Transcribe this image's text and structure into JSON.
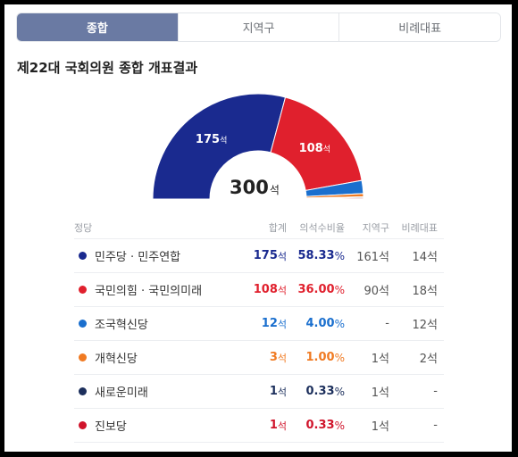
{
  "tabs": [
    {
      "label": "종합",
      "active": true
    },
    {
      "label": "지역구",
      "active": false
    },
    {
      "label": "비례대표",
      "active": false
    }
  ],
  "title": "제22대 국회의원 종합 개표결과",
  "summary": {
    "total": "300",
    "total_unit": "석"
  },
  "headers": {
    "party": "정당",
    "seats": "합계",
    "ratio": "의석수비율",
    "district": "지역구",
    "proportional": "비례대표"
  },
  "parties": [
    {
      "name": "민주당 · 민주연합",
      "seats": "175",
      "seat_unit": "석",
      "ratio": "58.33",
      "ratio_unit": "%",
      "district": "161석",
      "proportional": "14석",
      "color": "#1a2a8f"
    },
    {
      "name": "국민의힘 · 국민의미래",
      "seats": "108",
      "seat_unit": "석",
      "ratio": "36.00",
      "ratio_unit": "%",
      "district": "90석",
      "proportional": "18석",
      "color": "#e0202d"
    },
    {
      "name": "조국혁신당",
      "seats": "12",
      "seat_unit": "석",
      "ratio": "4.00",
      "ratio_unit": "%",
      "district": "-",
      "proportional": "12석",
      "color": "#1a6fce"
    },
    {
      "name": "개혁신당",
      "seats": "3",
      "seat_unit": "석",
      "ratio": "1.00",
      "ratio_unit": "%",
      "district": "1석",
      "proportional": "2석",
      "color": "#f07a22"
    },
    {
      "name": "새로운미래",
      "seats": "1",
      "seat_unit": "석",
      "ratio": "0.33",
      "ratio_unit": "%",
      "district": "1석",
      "proportional": "-",
      "color": "#1c2f5c"
    },
    {
      "name": "진보당",
      "seats": "1",
      "seat_unit": "석",
      "ratio": "0.33",
      "ratio_unit": "%",
      "district": "1석",
      "proportional": "-",
      "color": "#d0142b"
    }
  ],
  "chart_data": {
    "type": "pie",
    "total": 300,
    "categories": [
      "민주당 · 민주연합",
      "국민의힘 · 국민의미래",
      "조국혁신당",
      "개혁신당",
      "새로운미래",
      "진보당"
    ],
    "values": [
      175,
      108,
      12,
      3,
      1,
      1
    ],
    "colors": [
      "#1a2a8f",
      "#e0202d",
      "#1a6fce",
      "#f07a22",
      "#1c2f5c",
      "#d0142b"
    ],
    "labels": [
      {
        "value": "175",
        "unit": "석"
      },
      {
        "value": "108",
        "unit": "석"
      }
    ]
  }
}
